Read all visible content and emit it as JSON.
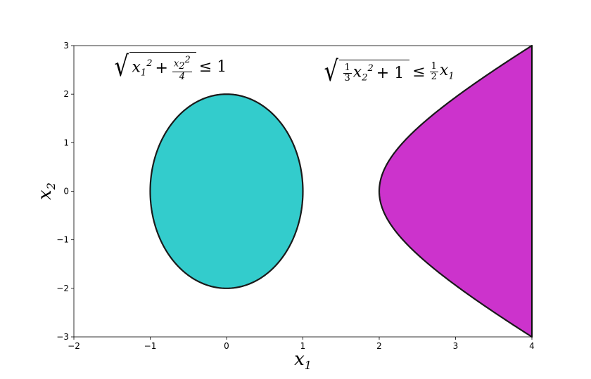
{
  "chart_data": {
    "type": "area",
    "xlabel": "x",
    "xlabel_sub": "1",
    "ylabel": "x",
    "ylabel_sub": "2",
    "xlim": [
      -2,
      4
    ],
    "ylim": [
      -3,
      3
    ],
    "xticks": [
      "−2",
      "−1",
      "0",
      "1",
      "2",
      "3",
      "4"
    ],
    "yticks": [
      "−3",
      "−2",
      "−1",
      "0",
      "1",
      "2",
      "3"
    ],
    "grid": false,
    "regions": [
      {
        "name": "ellipse",
        "shape": "ellipse",
        "center": [
          0,
          0
        ],
        "semi_axes": [
          1,
          2
        ],
        "color": "#33cccc"
      },
      {
        "name": "hyperbola",
        "shape": "hyperbola",
        "vertex": [
          2,
          0
        ],
        "x_range": [
          2,
          4
        ],
        "color": "#cc33cc"
      }
    ],
    "outline_color": "#1a1a1a",
    "annotations": [
      {
        "text": "√(x₁² + x₂²/4) ≤ 1",
        "target": "ellipse"
      },
      {
        "text": "√((1/3)x₂² + 1) ≤ (1/2)x₁",
        "target": "hyperbola"
      }
    ]
  }
}
